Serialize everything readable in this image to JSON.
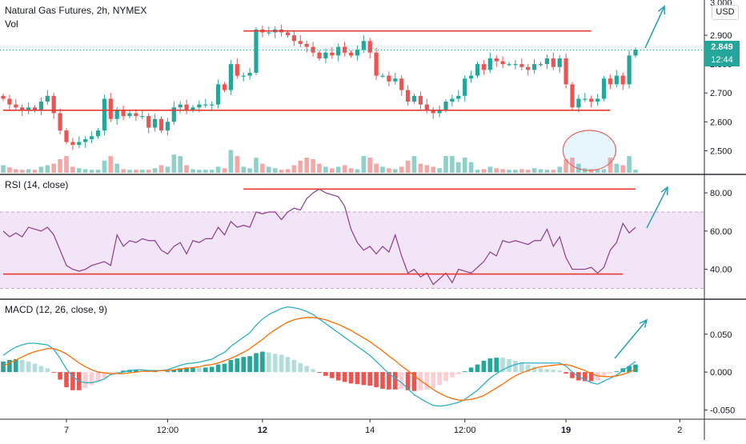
{
  "colors": {
    "up": "#26a69a",
    "down": "#ef5350",
    "vol_up": "#8fd1c8",
    "vol_down": "#f4a7a5",
    "level_line": "#e53935",
    "arrow": "#26a0b8",
    "rsi_line": "#8e3b8e",
    "rsi_band": "#f3e5f8",
    "macd_line": "#2bb0c5",
    "signal_line": "#ff6d00",
    "hist_up_strong": "#26a69a",
    "hist_up_weak": "#b2dfdb",
    "hist_down_strong": "#ef5350",
    "hist_down_weak": "#ffcdd2",
    "price_tag": "#26a69a"
  },
  "header": {
    "symbol_title": "Natural Gas Futures, 2h, NYMEX",
    "volume_label": "Vol",
    "currency_badge": "USD"
  },
  "price_tag": {
    "last_price": "2.849",
    "countdown": "12:44"
  },
  "rsi_title": "RSI (14, close)",
  "macd_title": "MACD (12, 26, close, 9)",
  "chart_data": [
    {
      "id": "price",
      "type": "candlestick",
      "title": "Natural Gas Futures, 2h, NYMEX",
      "ylim": [
        2.44,
        3.0
      ],
      "y_ticks": [
        "2.900",
        "2.800",
        "2.700",
        "2.600",
        "2.500"
      ],
      "y_tick_values": [
        2.9,
        2.8,
        2.7,
        2.6,
        2.5
      ],
      "y_top_partial": "3.000",
      "last_price": 2.849,
      "closes": [
        2.68,
        2.66,
        2.65,
        2.64,
        2.65,
        2.64,
        2.67,
        2.69,
        2.63,
        2.57,
        2.53,
        2.52,
        2.53,
        2.54,
        2.55,
        2.57,
        2.68,
        2.61,
        2.64,
        2.62,
        2.63,
        2.62,
        2.62,
        2.58,
        2.61,
        2.57,
        2.6,
        2.65,
        2.66,
        2.64,
        2.65,
        2.66,
        2.66,
        2.66,
        2.73,
        2.71,
        2.8,
        2.76,
        2.76,
        2.77,
        2.92,
        2.91,
        2.91,
        2.92,
        2.91,
        2.9,
        2.88,
        2.87,
        2.86,
        2.84,
        2.82,
        2.84,
        2.83,
        2.86,
        2.84,
        2.83,
        2.85,
        2.88,
        2.84,
        2.76,
        2.76,
        2.74,
        2.75,
        2.71,
        2.67,
        2.69,
        2.66,
        2.64,
        2.63,
        2.64,
        2.67,
        2.68,
        2.69,
        2.75,
        2.76,
        2.8,
        2.78,
        2.82,
        2.81,
        2.8,
        2.8,
        2.8,
        2.79,
        2.78,
        2.8,
        2.8,
        2.82,
        2.79,
        2.82,
        2.73,
        2.65,
        2.68,
        2.68,
        2.67,
        2.68,
        2.75,
        2.73,
        2.76,
        2.73,
        2.83,
        2.85
      ],
      "volume_closes": [
        2.68,
        2.66,
        2.65,
        2.64,
        2.65,
        2.64,
        2.67,
        2.69,
        2.63,
        2.57,
        2.53,
        2.52,
        2.53,
        2.54,
        2.55,
        2.57,
        2.68,
        2.61,
        2.64,
        2.62,
        2.63,
        2.62,
        2.62,
        2.58,
        2.61,
        2.57,
        2.6,
        2.65,
        2.66,
        2.64,
        2.65,
        2.66,
        2.66,
        2.66,
        2.73,
        2.71,
        2.8,
        2.76,
        2.76,
        2.77,
        2.92,
        2.91,
        2.91,
        2.92,
        2.91,
        2.9,
        2.88,
        2.87,
        2.86,
        2.84,
        2.82,
        2.84,
        2.83,
        2.86,
        2.84,
        2.83,
        2.85,
        2.88,
        2.84,
        2.76,
        2.76,
        2.74,
        2.75,
        2.71,
        2.67,
        2.69,
        2.66,
        2.64,
        2.63,
        2.64,
        2.67,
        2.68,
        2.69,
        2.75,
        2.76,
        2.8,
        2.78,
        2.82,
        2.81,
        2.8,
        2.8,
        2.8,
        2.79,
        2.78,
        2.8,
        2.8,
        2.82,
        2.79,
        2.82,
        2.73,
        2.65,
        2.68,
        2.68,
        2.67,
        2.68,
        2.75,
        2.73,
        2.76,
        2.73,
        2.83,
        2.85
      ],
      "volume": [
        0.25,
        0.18,
        0.12,
        0.1,
        0.12,
        0.1,
        0.2,
        0.25,
        0.3,
        0.45,
        0.55,
        0.2,
        0.15,
        0.12,
        0.1,
        0.1,
        0.4,
        0.55,
        0.3,
        0.12,
        0.1,
        0.1,
        0.1,
        0.1,
        0.15,
        0.25,
        0.2,
        0.6,
        0.55,
        0.25,
        0.12,
        0.1,
        0.1,
        0.1,
        0.2,
        0.15,
        0.75,
        0.55,
        0.2,
        0.15,
        0.5,
        0.3,
        0.2,
        0.15,
        0.1,
        0.12,
        0.25,
        0.4,
        0.5,
        0.45,
        0.3,
        0.2,
        0.15,
        0.2,
        0.25,
        0.15,
        0.12,
        0.55,
        0.5,
        0.3,
        0.2,
        0.15,
        0.12,
        0.2,
        0.4,
        0.55,
        0.3,
        0.25,
        0.2,
        0.15,
        0.55,
        0.55,
        0.35,
        0.5,
        0.35,
        0.1,
        0.12,
        0.2,
        0.15,
        0.12,
        0.1,
        0.1,
        0.12,
        0.1,
        0.15,
        0.12,
        0.1,
        0.1,
        0.2,
        0.45,
        0.5,
        0.3,
        0.15,
        0.12,
        0.1,
        0.12,
        0.5,
        0.3,
        0.25,
        0.55,
        0.1
      ],
      "levels": [
        {
          "from_index": 38,
          "to_index": 93,
          "value": 2.915
        },
        {
          "from_index": 0,
          "to_index": 96,
          "value": 2.64
        }
      ],
      "highlight_ellipse": {
        "center_index": 96,
        "description": ""
      }
    },
    {
      "id": "rsi",
      "type": "line",
      "title": "RSI (14, close)",
      "ylim": [
        26,
        88
      ],
      "y_ticks": [
        "80.00",
        "60.00",
        "40.00"
      ],
      "y_tick_values": [
        80,
        60,
        40
      ],
      "band": [
        30,
        70
      ],
      "values": [
        60,
        57,
        59,
        57,
        62,
        61,
        60,
        62,
        58,
        50,
        42,
        40,
        39,
        40,
        42,
        43,
        44,
        42,
        58,
        52,
        55,
        54,
        56,
        55,
        55,
        50,
        48,
        52,
        54,
        48,
        55,
        54,
        56,
        56,
        62,
        58,
        65,
        62,
        63,
        62,
        70,
        69,
        70,
        70,
        66,
        70,
        72,
        71,
        77,
        80,
        82,
        80,
        79,
        78,
        73,
        61,
        54,
        50,
        52,
        48,
        52,
        49,
        58,
        47,
        38,
        40,
        36,
        38,
        32,
        35,
        38,
        33,
        40,
        39,
        38,
        41,
        44,
        49,
        47,
        55,
        54,
        55,
        54,
        53,
        55,
        55,
        61,
        52,
        57,
        46,
        40,
        40,
        40,
        41,
        38,
        41,
        50,
        54,
        64,
        59,
        62
      ],
      "levels": [
        {
          "from_index": 0,
          "to_index": 98,
          "value": 37.5
        },
        {
          "from_index": 38,
          "to_index": 100,
          "value": 82
        }
      ]
    },
    {
      "id": "macd",
      "type": "line+histogram",
      "title": "MACD (12, 26, close, 9)",
      "ylim": [
        -0.058,
        0.092
      ],
      "y_ticks": [
        "0.050",
        "0.000",
        "-0.050"
      ],
      "y_tick_values": [
        0.05,
        0.0,
        -0.05
      ],
      "macd": [
        0.022,
        0.028,
        0.033,
        0.036,
        0.038,
        0.038,
        0.037,
        0.036,
        0.03,
        0.018,
        0.004,
        -0.006,
        -0.012,
        -0.014,
        -0.014,
        -0.012,
        -0.009,
        -0.003,
        -0.002,
        0.0,
        0.002,
        0.003,
        0.003,
        0.002,
        0.002,
        0.002,
        0.003,
        0.006,
        0.009,
        0.011,
        0.012,
        0.013,
        0.015,
        0.017,
        0.022,
        0.026,
        0.034,
        0.04,
        0.046,
        0.052,
        0.062,
        0.07,
        0.076,
        0.08,
        0.084,
        0.086,
        0.085,
        0.083,
        0.08,
        0.076,
        0.07,
        0.064,
        0.058,
        0.052,
        0.046,
        0.04,
        0.034,
        0.028,
        0.022,
        0.014,
        0.006,
        -0.002,
        -0.008,
        -0.014,
        -0.022,
        -0.03,
        -0.035,
        -0.04,
        -0.044,
        -0.045,
        -0.044,
        -0.042,
        -0.04,
        -0.036,
        -0.03,
        -0.024,
        -0.016,
        -0.008,
        -0.002,
        0.003,
        0.007,
        0.01,
        0.012,
        0.012,
        0.012,
        0.012,
        0.012,
        0.012,
        0.012,
        0.008,
        0.0,
        -0.006,
        -0.01,
        -0.014,
        -0.016,
        -0.012,
        -0.008,
        -0.004,
        0.002,
        0.008,
        0.014
      ],
      "signal": [
        0.008,
        0.012,
        0.016,
        0.02,
        0.024,
        0.027,
        0.029,
        0.031,
        0.031,
        0.028,
        0.024,
        0.018,
        0.012,
        0.007,
        0.003,
        0.0,
        -0.001,
        -0.002,
        -0.002,
        -0.002,
        -0.001,
        0.0,
        0.001,
        0.001,
        0.001,
        0.002,
        0.002,
        0.003,
        0.004,
        0.005,
        0.006,
        0.007,
        0.009,
        0.01,
        0.012,
        0.015,
        0.018,
        0.022,
        0.026,
        0.031,
        0.037,
        0.043,
        0.05,
        0.056,
        0.061,
        0.066,
        0.069,
        0.071,
        0.072,
        0.072,
        0.071,
        0.069,
        0.066,
        0.063,
        0.059,
        0.055,
        0.05,
        0.045,
        0.04,
        0.034,
        0.028,
        0.021,
        0.015,
        0.008,
        0.002,
        -0.005,
        -0.011,
        -0.017,
        -0.023,
        -0.028,
        -0.032,
        -0.035,
        -0.037,
        -0.037,
        -0.036,
        -0.034,
        -0.031,
        -0.026,
        -0.021,
        -0.016,
        -0.01,
        -0.005,
        -0.001,
        0.002,
        0.005,
        0.007,
        0.008,
        0.009,
        0.01,
        0.01,
        0.008,
        0.005,
        0.002,
        -0.002,
        -0.005,
        -0.006,
        -0.006,
        -0.005,
        -0.003,
        0.0,
        0.004
      ]
    }
  ],
  "x_axis": {
    "labels": [
      {
        "text": "7",
        "index": 10,
        "bold": false
      },
      {
        "text": "12:00",
        "index": 26,
        "bold": false
      },
      {
        "text": "12",
        "index": 41,
        "bold": true
      },
      {
        "text": "14",
        "index": 58,
        "bold": false
      },
      {
        "text": "12:00",
        "index": 73,
        "bold": false
      },
      {
        "text": "19",
        "index": 89,
        "bold": true
      },
      {
        "text": "2",
        "index": 107,
        "bold": false
      }
    ]
  }
}
